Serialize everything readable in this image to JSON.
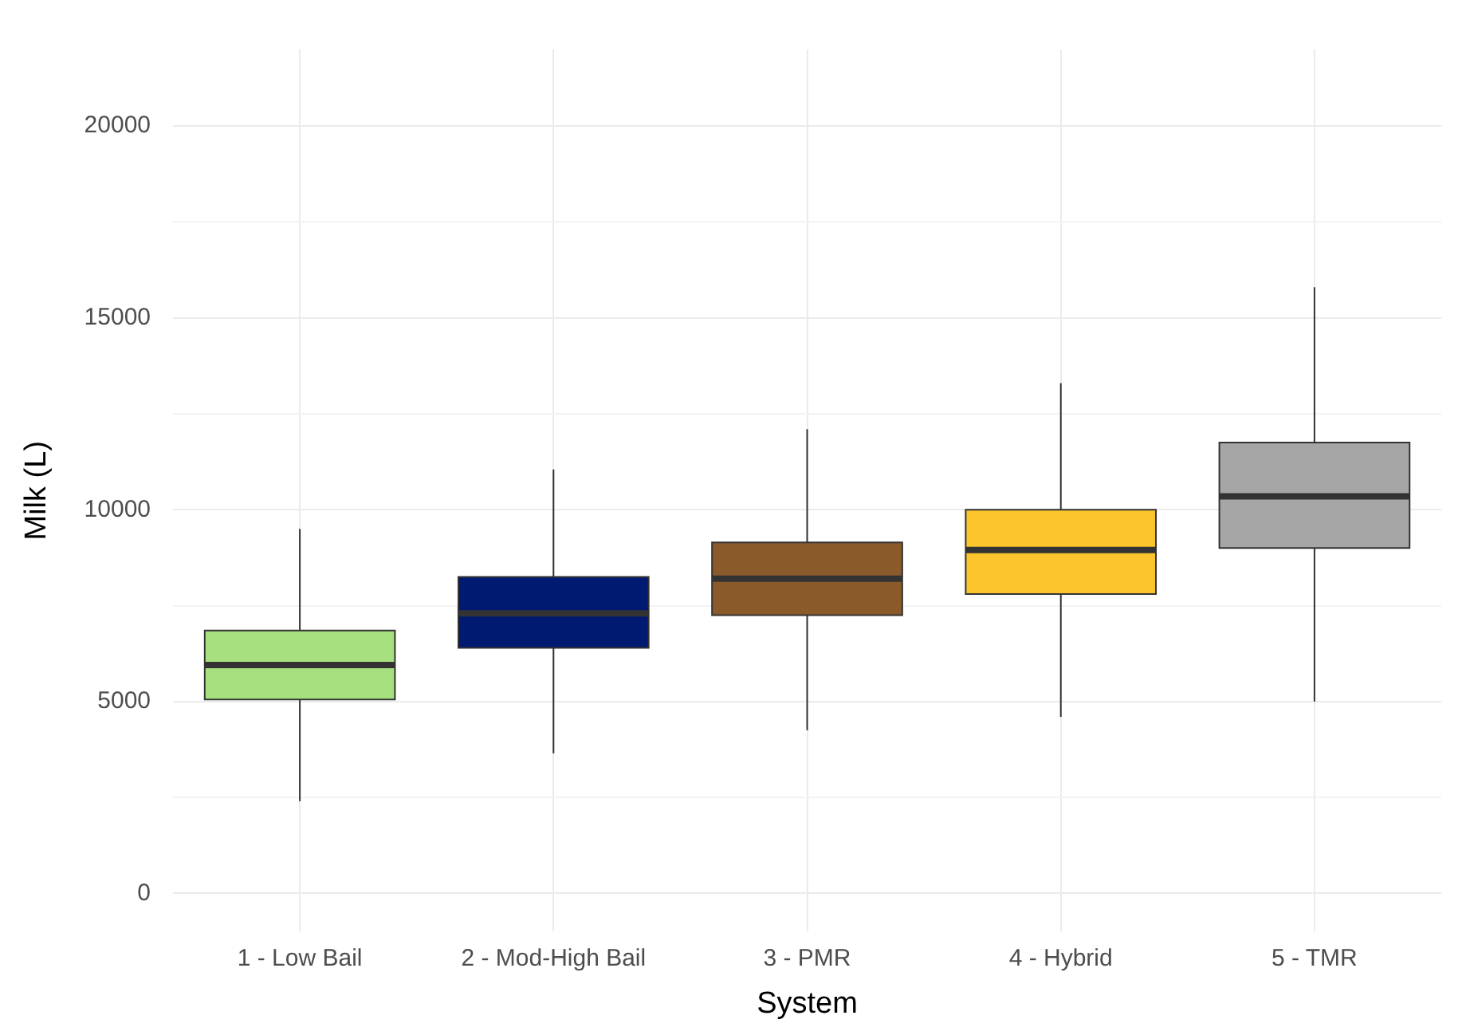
{
  "chart_data": {
    "type": "box",
    "xlabel": "System",
    "ylabel": "Milk (L)",
    "categories": [
      "1 - Low Bail",
      "2 - Mod-High Bail",
      "3 - PMR",
      "4 - Hybrid",
      "5 - TMR"
    ],
    "colors": [
      "#a6e07f",
      "#001a72",
      "#8b5a2b",
      "#fcc42d",
      "#a6a6a6"
    ],
    "boxes": [
      {
        "low": 2400,
        "q1": 5050,
        "median": 5950,
        "q3": 6850,
        "high": 9500
      },
      {
        "low": 3650,
        "q1": 6400,
        "median": 7300,
        "q3": 8250,
        "high": 11050
      },
      {
        "low": 4250,
        "q1": 7250,
        "median": 8200,
        "q3": 9150,
        "high": 12100
      },
      {
        "low": 4600,
        "q1": 7800,
        "median": 8950,
        "q3": 10000,
        "high": 13300
      },
      {
        "low": 5000,
        "q1": 9000,
        "median": 10350,
        "q3": 11750,
        "high": 15800
      }
    ],
    "ylim": [
      -1000,
      22000
    ],
    "yticks": [
      0,
      {
        "value": 2500,
        "label": null
      },
      5000,
      {
        "value": 7500,
        "label": null
      },
      10000,
      {
        "value": 12500,
        "label": null
      },
      15000,
      {
        "value": 17500,
        "label": null
      },
      20000
    ],
    "grid": true,
    "legend": false
  }
}
